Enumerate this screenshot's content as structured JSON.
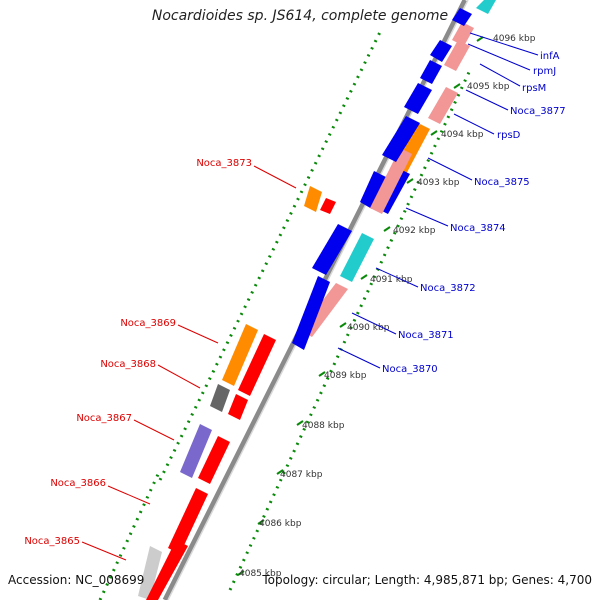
{
  "title": "Nocardioides sp. JS614, complete genome",
  "footer": {
    "accession": "Accession: NC_008699",
    "topology": "Topology: circular; Length: 4,985,871 bp; Genes: 4,700"
  },
  "colors": {
    "red": "#ff0000",
    "pink": "#f29696",
    "blue": "#0000ee",
    "cyan": "#23cccc",
    "orange": "#ff8c00",
    "gray": "#666666",
    "lightgray": "#cccccc",
    "purple": "#7a68cc",
    "backbone": "#8a8a8a",
    "dots": "#0a8a0a",
    "label_red": "#dd0000",
    "label_blue": "#0000cc"
  },
  "scale_ticks": [
    "4085 kbp",
    "4086 kbp",
    "4087 kbp",
    "4088 kbp",
    "4089 kbp",
    "4090 kbp",
    "4091 kbp",
    "4092 kbp",
    "4093 kbp",
    "4094 kbp",
    "4095 kbp",
    "4096 kbp"
  ],
  "labels_left": [
    "Noca_3873",
    "Noca_3869",
    "Noca_3868",
    "Noca_3867",
    "Noca_3866",
    "Noca_3865"
  ],
  "labels_right": [
    "infA",
    "rpmJ",
    "rpsM",
    "Noca_3877",
    "rpsD",
    "Noca_3875",
    "Noca_3874",
    "Noca_3872",
    "Noca_3871",
    "Noca_3870"
  ]
}
